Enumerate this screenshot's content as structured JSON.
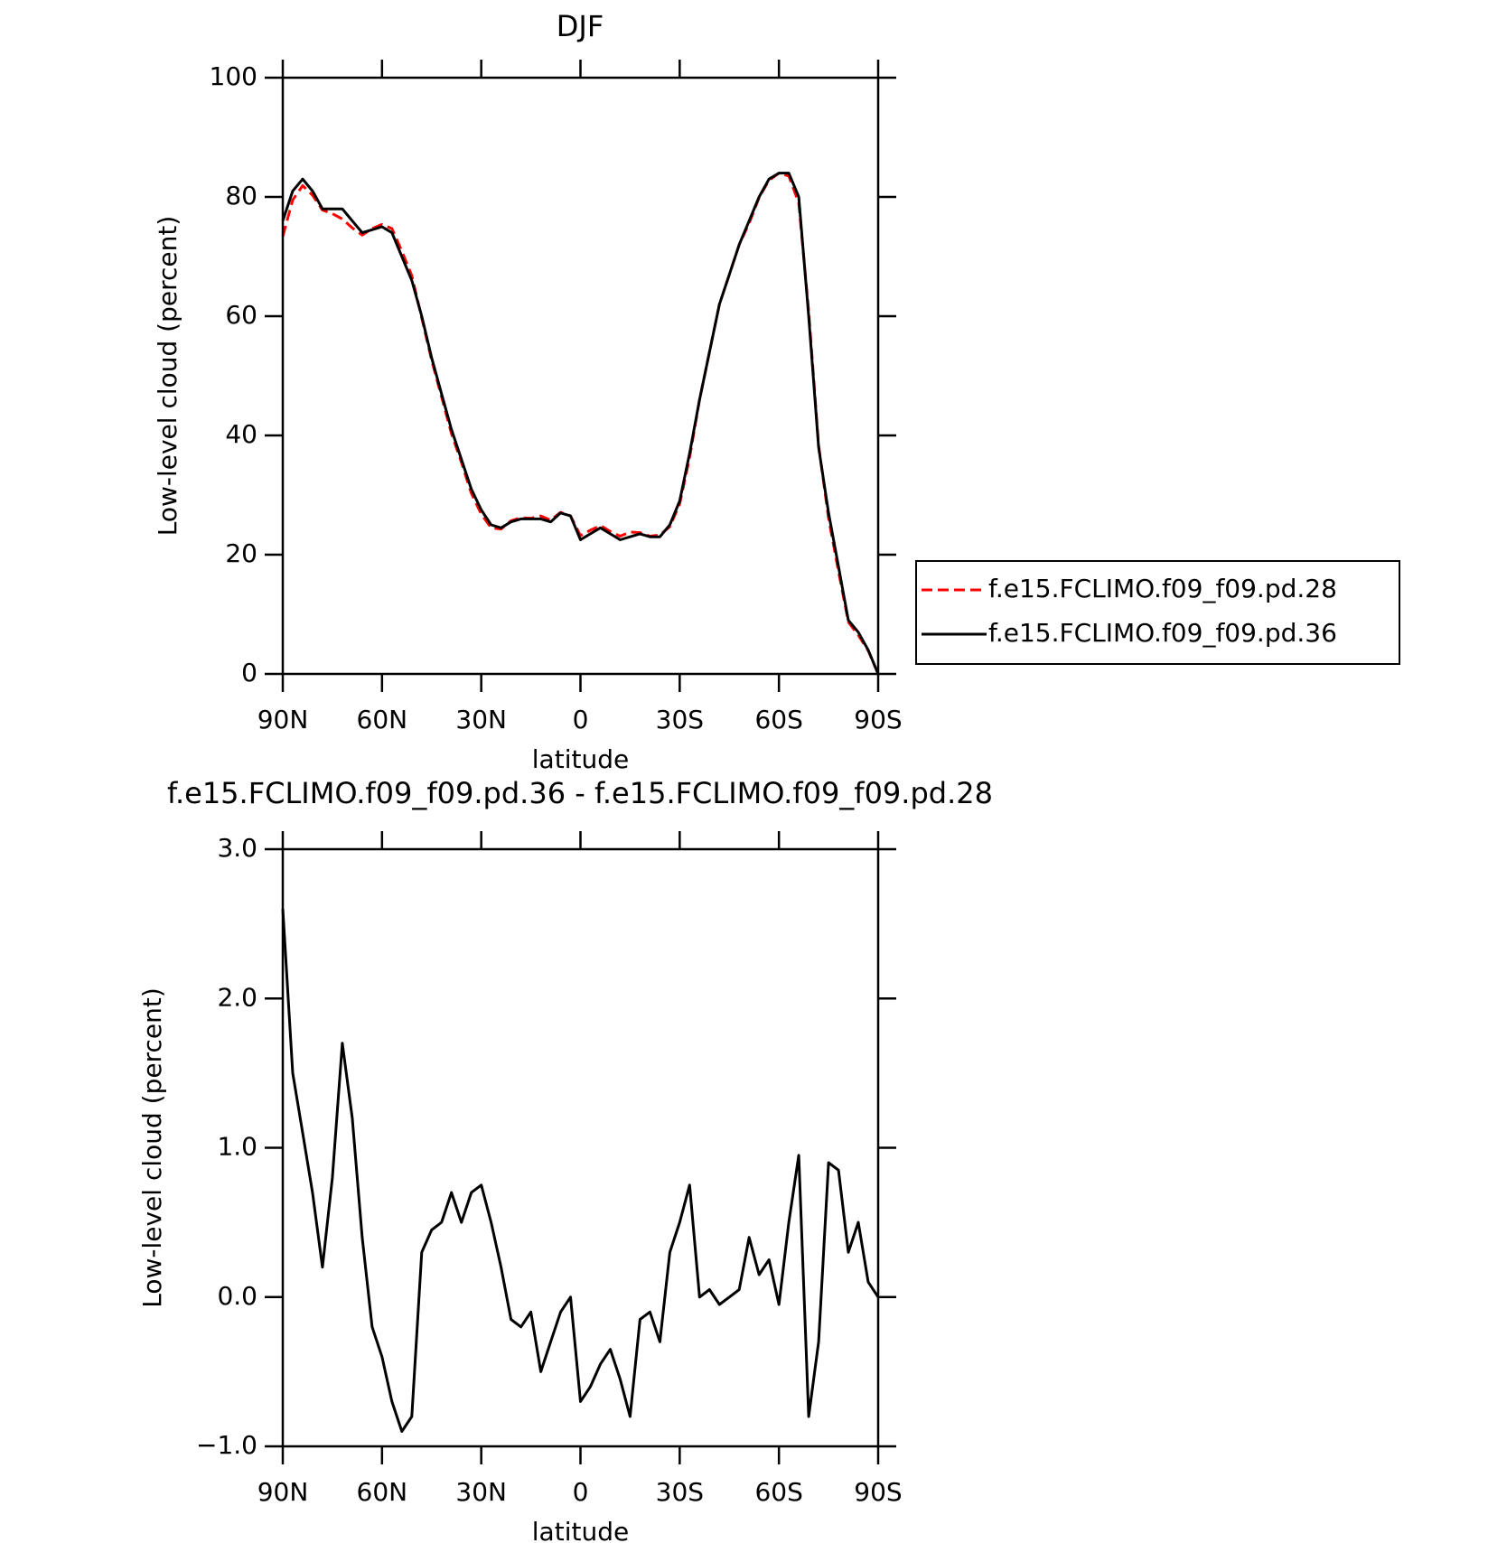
{
  "chart_data": [
    {
      "type": "line",
      "title": "DJF",
      "x_label": "latitude",
      "y_label": "Low-level cloud (percent)",
      "x": [
        90,
        87,
        84,
        81,
        78,
        75,
        72,
        69,
        66,
        63,
        60,
        57,
        54,
        51,
        48,
        45,
        42,
        39,
        36,
        33,
        30,
        27,
        24,
        21,
        18,
        15,
        12,
        9,
        6,
        3,
        0,
        -3,
        -6,
        -9,
        -12,
        -15,
        -18,
        -21,
        -24,
        -27,
        -30,
        -33,
        -36,
        -39,
        -42,
        -45,
        -48,
        -51,
        -54,
        -57,
        -60,
        -63,
        -66,
        -69,
        -72,
        -75,
        -78,
        -81,
        -84,
        -87,
        -90
      ],
      "xlim": [
        90,
        -90
      ],
      "xticks": [
        {
          "value": 90,
          "label": "90N"
        },
        {
          "value": 60,
          "label": "60N"
        },
        {
          "value": 30,
          "label": "30N"
        },
        0,
        {
          "value": -30,
          "label": "30S"
        },
        {
          "value": -60,
          "label": "60S"
        },
        {
          "value": -90,
          "label": "90S"
        }
      ],
      "ylim": [
        0,
        100
      ],
      "yticks": [
        0,
        20,
        40,
        60,
        80,
        100
      ],
      "series": [
        {
          "name": "f.e15.FCLIMO.f09_f09.pd.28",
          "color": "#ff0000",
          "dashed": true,
          "values": [
            73.4,
            79.5,
            81.9,
            80.3,
            77.8,
            77.2,
            76.3,
            74.8,
            73.6,
            74.7,
            75.4,
            74.7,
            70.9,
            66.8,
            59.7,
            52.6,
            46.5,
            40.3,
            35.5,
            30.3,
            26.8,
            24.5,
            24.3,
            25.7,
            26.2,
            26.1,
            26.5,
            25.8,
            27.1,
            26.5,
            23.2,
            24.1,
            24.9,
            23.9,
            23.1,
            23.8,
            23.7,
            23.1,
            23.3,
            24.7,
            28.5,
            36.3,
            46,
            54,
            62,
            67,
            72,
            75.6,
            79.9,
            82.8,
            84,
            83.5,
            79,
            60.8,
            38.3,
            26.1,
            17.2,
            8.7,
            6.5,
            3.9,
            0
          ]
        },
        {
          "name": "f.e15.FCLIMO.f09_f09.pd.36",
          "color": "#000000",
          "dashed": false,
          "values": [
            76,
            81,
            83,
            81,
            78,
            78,
            78,
            76,
            74,
            74.5,
            75,
            74,
            70,
            66,
            60,
            53,
            47,
            41,
            36,
            31,
            27.5,
            25,
            24.5,
            25.5,
            26,
            26,
            26,
            25.5,
            27,
            26.5,
            22.5,
            23.5,
            24.5,
            23.5,
            22.5,
            23,
            23.5,
            23,
            23,
            25,
            29,
            37,
            46,
            54,
            62,
            67,
            72,
            76,
            80,
            83,
            84,
            84,
            80,
            60,
            38,
            27,
            18,
            9,
            7,
            4,
            0
          ]
        }
      ],
      "legend": "right"
    },
    {
      "type": "line",
      "title": "f.e15.FCLIMO.f09_f09.pd.36 - f.e15.FCLIMO.f09_f09.pd.28",
      "x_label": "latitude",
      "y_label": "Low-level cloud (percent)",
      "x": [
        90,
        87,
        84,
        81,
        78,
        75,
        72,
        69,
        66,
        63,
        60,
        57,
        54,
        51,
        48,
        45,
        42,
        39,
        36,
        33,
        30,
        27,
        24,
        21,
        18,
        15,
        12,
        9,
        6,
        3,
        0,
        -3,
        -6,
        -9,
        -12,
        -15,
        -18,
        -21,
        -24,
        -27,
        -30,
        -33,
        -36,
        -39,
        -42,
        -45,
        -48,
        -51,
        -54,
        -57,
        -60,
        -63,
        -66,
        -69,
        -72,
        -75,
        -78,
        -81,
        -84,
        -87,
        -90
      ],
      "xlim": [
        90,
        -90
      ],
      "xticks": [
        {
          "value": 90,
          "label": "90N"
        },
        {
          "value": 60,
          "label": "60N"
        },
        {
          "value": 30,
          "label": "30N"
        },
        0,
        {
          "value": -30,
          "label": "30S"
        },
        {
          "value": -60,
          "label": "60S"
        },
        {
          "value": -90,
          "label": "90S"
        }
      ],
      "ylim": [
        -1,
        3
      ],
      "yticks": [
        {
          "value": -1,
          "label": "−1.0"
        },
        {
          "value": 0,
          "label": "0.0"
        },
        {
          "value": 1,
          "label": "1.0"
        },
        {
          "value": 2,
          "label": "2.0"
        },
        {
          "value": 3,
          "label": "3.0"
        }
      ],
      "series": [
        {
          "color": "#000000",
          "dashed": false,
          "values": [
            2.6,
            1.5,
            1.1,
            0.7,
            0.2,
            0.8,
            1.7,
            1.2,
            0.4,
            -0.2,
            -0.4,
            -0.7,
            -0.9,
            -0.8,
            0.3,
            0.45,
            0.5,
            0.7,
            0.5,
            0.7,
            0.75,
            0.5,
            0.2,
            -0.15,
            -0.2,
            -0.1,
            -0.5,
            -0.3,
            -0.1,
            0,
            -0.7,
            -0.6,
            -0.45,
            -0.35,
            -0.55,
            -0.8,
            -0.15,
            -0.1,
            -0.3,
            0.3,
            0.5,
            0.75,
            0,
            0.05,
            -0.05,
            0,
            0.05,
            0.4,
            0.15,
            0.25,
            -0.05,
            0.5,
            0.95,
            -0.8,
            -0.3,
            0.9,
            0.85,
            0.3,
            0.5,
            0.1,
            0
          ]
        }
      ]
    }
  ]
}
